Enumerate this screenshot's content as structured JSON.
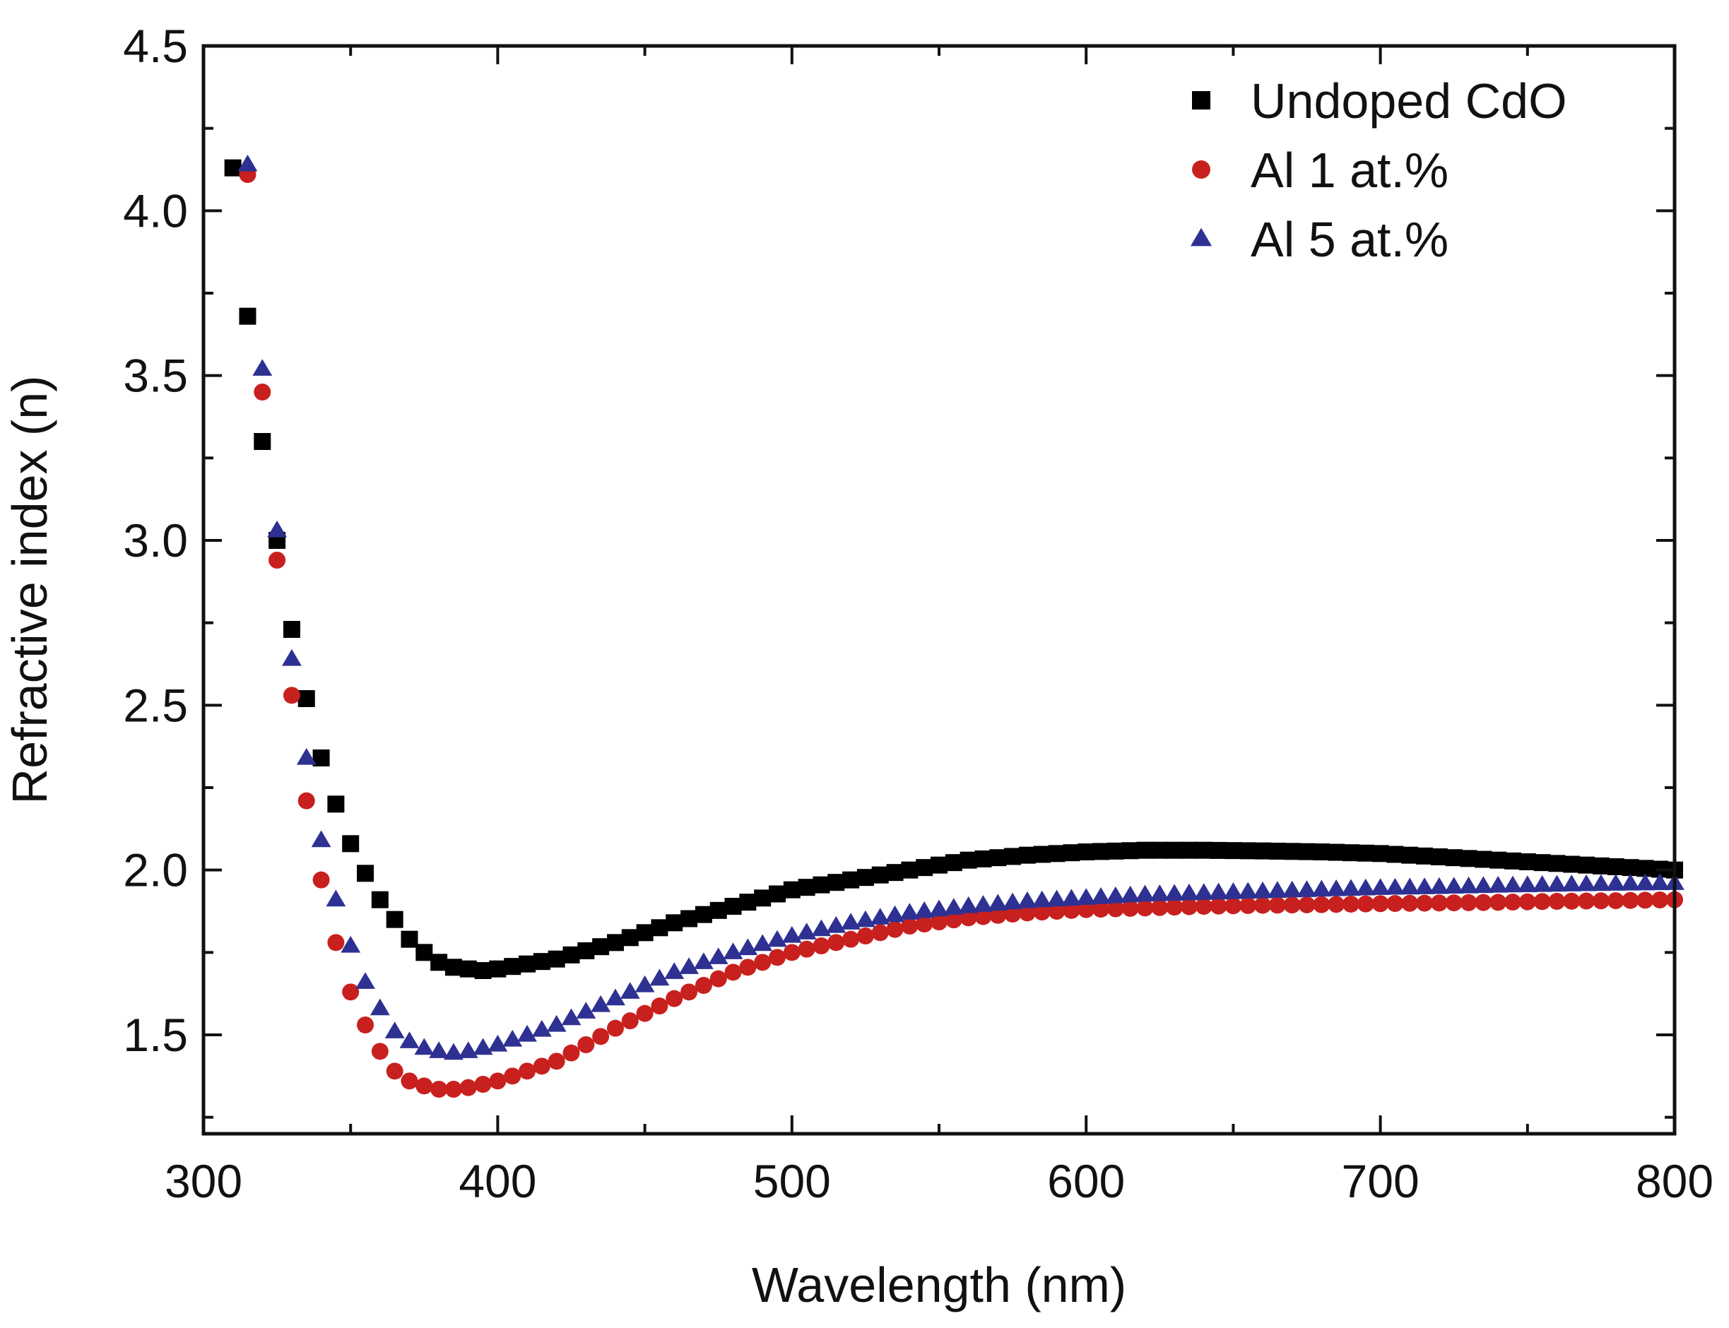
{
  "chart_data": {
    "type": "scatter",
    "title": "",
    "xlabel": "Wavelength (nm)",
    "ylabel": "Refractive index (n)",
    "xlim": [
      300,
      800
    ],
    "ylim": [
      1.2,
      4.5
    ],
    "xticks": [
      300,
      400,
      500,
      600,
      700,
      800
    ],
    "yticks": [
      1.5,
      2.0,
      2.5,
      3.0,
      3.5,
      4.0,
      4.5
    ],
    "xtick_labels": [
      "300",
      "400",
      "500",
      "600",
      "700",
      "800"
    ],
    "ytick_labels": [
      "1.5",
      "2.0",
      "2.5",
      "3.0",
      "3.5",
      "4.0",
      "4.5"
    ],
    "x_minor_step": 50,
    "y_minor_step": 0.25,
    "legend_position": "top-right",
    "x_start": 310,
    "x_end": 800,
    "x_step": 5,
    "series": [
      {
        "name": "Undoped CdO",
        "marker": "square",
        "color": "#000000",
        "anchors": [
          [
            310,
            4.13
          ],
          [
            315,
            3.68
          ],
          [
            320,
            3.3
          ],
          [
            325,
            3.0
          ],
          [
            330,
            2.73
          ],
          [
            335,
            2.52
          ],
          [
            340,
            2.34
          ],
          [
            345,
            2.2
          ],
          [
            350,
            2.08
          ],
          [
            355,
            1.99
          ],
          [
            360,
            1.91
          ],
          [
            365,
            1.85
          ],
          [
            370,
            1.79
          ],
          [
            375,
            1.75
          ],
          [
            380,
            1.72
          ],
          [
            385,
            1.705
          ],
          [
            390,
            1.7
          ],
          [
            395,
            1.695
          ],
          [
            400,
            1.7
          ],
          [
            420,
            1.73
          ],
          [
            440,
            1.78
          ],
          [
            460,
            1.84
          ],
          [
            480,
            1.89
          ],
          [
            500,
            1.94
          ],
          [
            520,
            1.97
          ],
          [
            540,
            2.0
          ],
          [
            560,
            2.03
          ],
          [
            580,
            2.045
          ],
          [
            600,
            2.055
          ],
          [
            620,
            2.06
          ],
          [
            640,
            2.06
          ],
          [
            660,
            2.058
          ],
          [
            680,
            2.055
          ],
          [
            700,
            2.05
          ],
          [
            720,
            2.04
          ],
          [
            740,
            2.03
          ],
          [
            760,
            2.02
          ],
          [
            780,
            2.01
          ],
          [
            800,
            2.0
          ]
        ]
      },
      {
        "name": "Al 1 at.%",
        "marker": "circle",
        "color": "#c8201e",
        "anchors": [
          [
            315,
            4.11
          ],
          [
            320,
            3.45
          ],
          [
            325,
            2.94
          ],
          [
            330,
            2.53
          ],
          [
            335,
            2.21
          ],
          [
            340,
            1.97
          ],
          [
            345,
            1.78
          ],
          [
            350,
            1.63
          ],
          [
            355,
            1.53
          ],
          [
            360,
            1.45
          ],
          [
            365,
            1.39
          ],
          [
            370,
            1.36
          ],
          [
            375,
            1.345
          ],
          [
            380,
            1.335
          ],
          [
            385,
            1.335
          ],
          [
            390,
            1.34
          ],
          [
            395,
            1.35
          ],
          [
            400,
            1.36
          ],
          [
            420,
            1.42
          ],
          [
            440,
            1.52
          ],
          [
            460,
            1.61
          ],
          [
            480,
            1.69
          ],
          [
            500,
            1.75
          ],
          [
            520,
            1.79
          ],
          [
            540,
            1.83
          ],
          [
            560,
            1.855
          ],
          [
            580,
            1.87
          ],
          [
            600,
            1.88
          ],
          [
            620,
            1.885
          ],
          [
            640,
            1.89
          ],
          [
            660,
            1.893
          ],
          [
            680,
            1.895
          ],
          [
            700,
            1.898
          ],
          [
            720,
            1.9
          ],
          [
            740,
            1.902
          ],
          [
            760,
            1.905
          ],
          [
            780,
            1.907
          ],
          [
            800,
            1.91
          ]
        ]
      },
      {
        "name": "Al 5 at.%",
        "marker": "triangle",
        "color": "#2e3192",
        "anchors": [
          [
            315,
            4.14
          ],
          [
            320,
            3.52
          ],
          [
            325,
            3.03
          ],
          [
            330,
            2.64
          ],
          [
            335,
            2.34
          ],
          [
            340,
            2.09
          ],
          [
            345,
            1.91
          ],
          [
            350,
            1.77
          ],
          [
            355,
            1.66
          ],
          [
            360,
            1.58
          ],
          [
            365,
            1.51
          ],
          [
            370,
            1.48
          ],
          [
            375,
            1.46
          ],
          [
            380,
            1.45
          ],
          [
            385,
            1.445
          ],
          [
            390,
            1.45
          ],
          [
            395,
            1.46
          ],
          [
            400,
            1.47
          ],
          [
            420,
            1.53
          ],
          [
            440,
            1.61
          ],
          [
            460,
            1.69
          ],
          [
            480,
            1.75
          ],
          [
            500,
            1.8
          ],
          [
            520,
            1.84
          ],
          [
            540,
            1.87
          ],
          [
            560,
            1.89
          ],
          [
            580,
            1.905
          ],
          [
            600,
            1.915
          ],
          [
            620,
            1.925
          ],
          [
            640,
            1.93
          ],
          [
            660,
            1.935
          ],
          [
            680,
            1.94
          ],
          [
            700,
            1.945
          ],
          [
            720,
            1.948
          ],
          [
            740,
            1.952
          ],
          [
            760,
            1.955
          ],
          [
            780,
            1.958
          ],
          [
            800,
            1.96
          ]
        ]
      }
    ]
  }
}
